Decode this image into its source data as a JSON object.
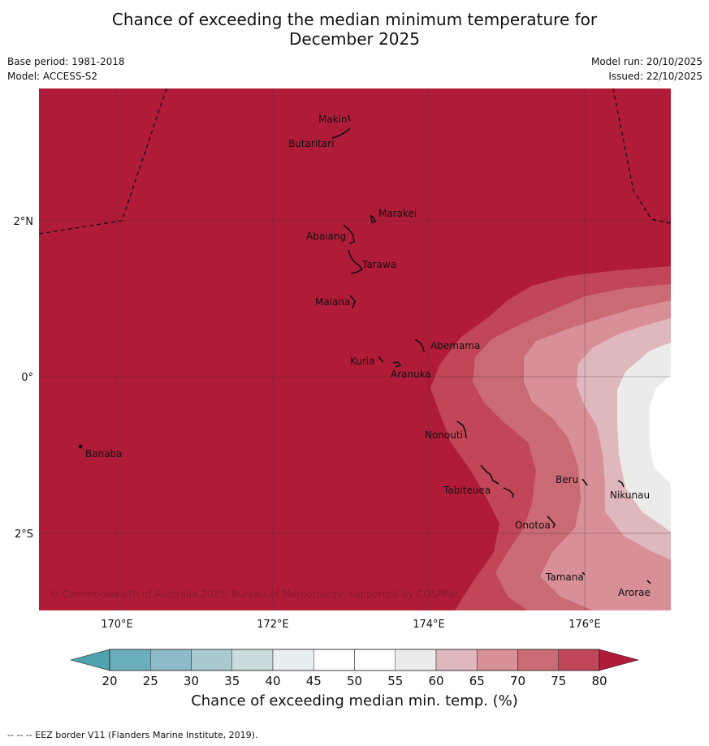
{
  "title_line1": "Chance of exceeding the median minimum temperature for",
  "title_line2": "December 2025",
  "meta": {
    "base_period": "Base period: 1981-2018",
    "model": "Model: ACCESS-S2",
    "model_run": "Model run: 20/10/2025",
    "issued": "Issued: 22/10/2025"
  },
  "map": {
    "lat_labels": [
      "2°N",
      "0°",
      "2°S"
    ],
    "lon_labels": [
      "170°E",
      "172°E",
      "174°E",
      "176°E"
    ],
    "copyright": "© Commonwealth of Australia 2025, Bureau of Meteorology, supported by COSPPac",
    "islands": [
      {
        "name": "Makin"
      },
      {
        "name": "Butaritari"
      },
      {
        "name": "Marakei"
      },
      {
        "name": "Abaiang"
      },
      {
        "name": "Tarawa"
      },
      {
        "name": "Maiana"
      },
      {
        "name": "Abemama"
      },
      {
        "name": "Kuria"
      },
      {
        "name": "Aranuka"
      },
      {
        "name": "Banaba"
      },
      {
        "name": "Nonouti"
      },
      {
        "name": "Beru"
      },
      {
        "name": "Tabiteuea"
      },
      {
        "name": "Nikunau"
      },
      {
        "name": "Onotoa"
      },
      {
        "name": "Tamana"
      },
      {
        "name": "Arorae"
      }
    ]
  },
  "colorbar": {
    "ticks": [
      "20",
      "25",
      "30",
      "35",
      "40",
      "45",
      "50",
      "55",
      "60",
      "65",
      "70",
      "75",
      "80"
    ],
    "colors": [
      "#6aaebd",
      "#8dbcc8",
      "#aac9cf",
      "#cbdadd",
      "#e8eff1",
      "#ffffff",
      "#ffffff",
      "#ebebe9",
      "#dfb8bd",
      "#d88f98",
      "#c96a75",
      "#c14657"
    ],
    "low_color": "#4fa3ae",
    "high_color": "#b01c38",
    "label": "Chance of exceeding median min. temp. (%)"
  },
  "footer": "--  --  -- EEZ border V11 (Flanders Marine Institute, 2019)."
}
